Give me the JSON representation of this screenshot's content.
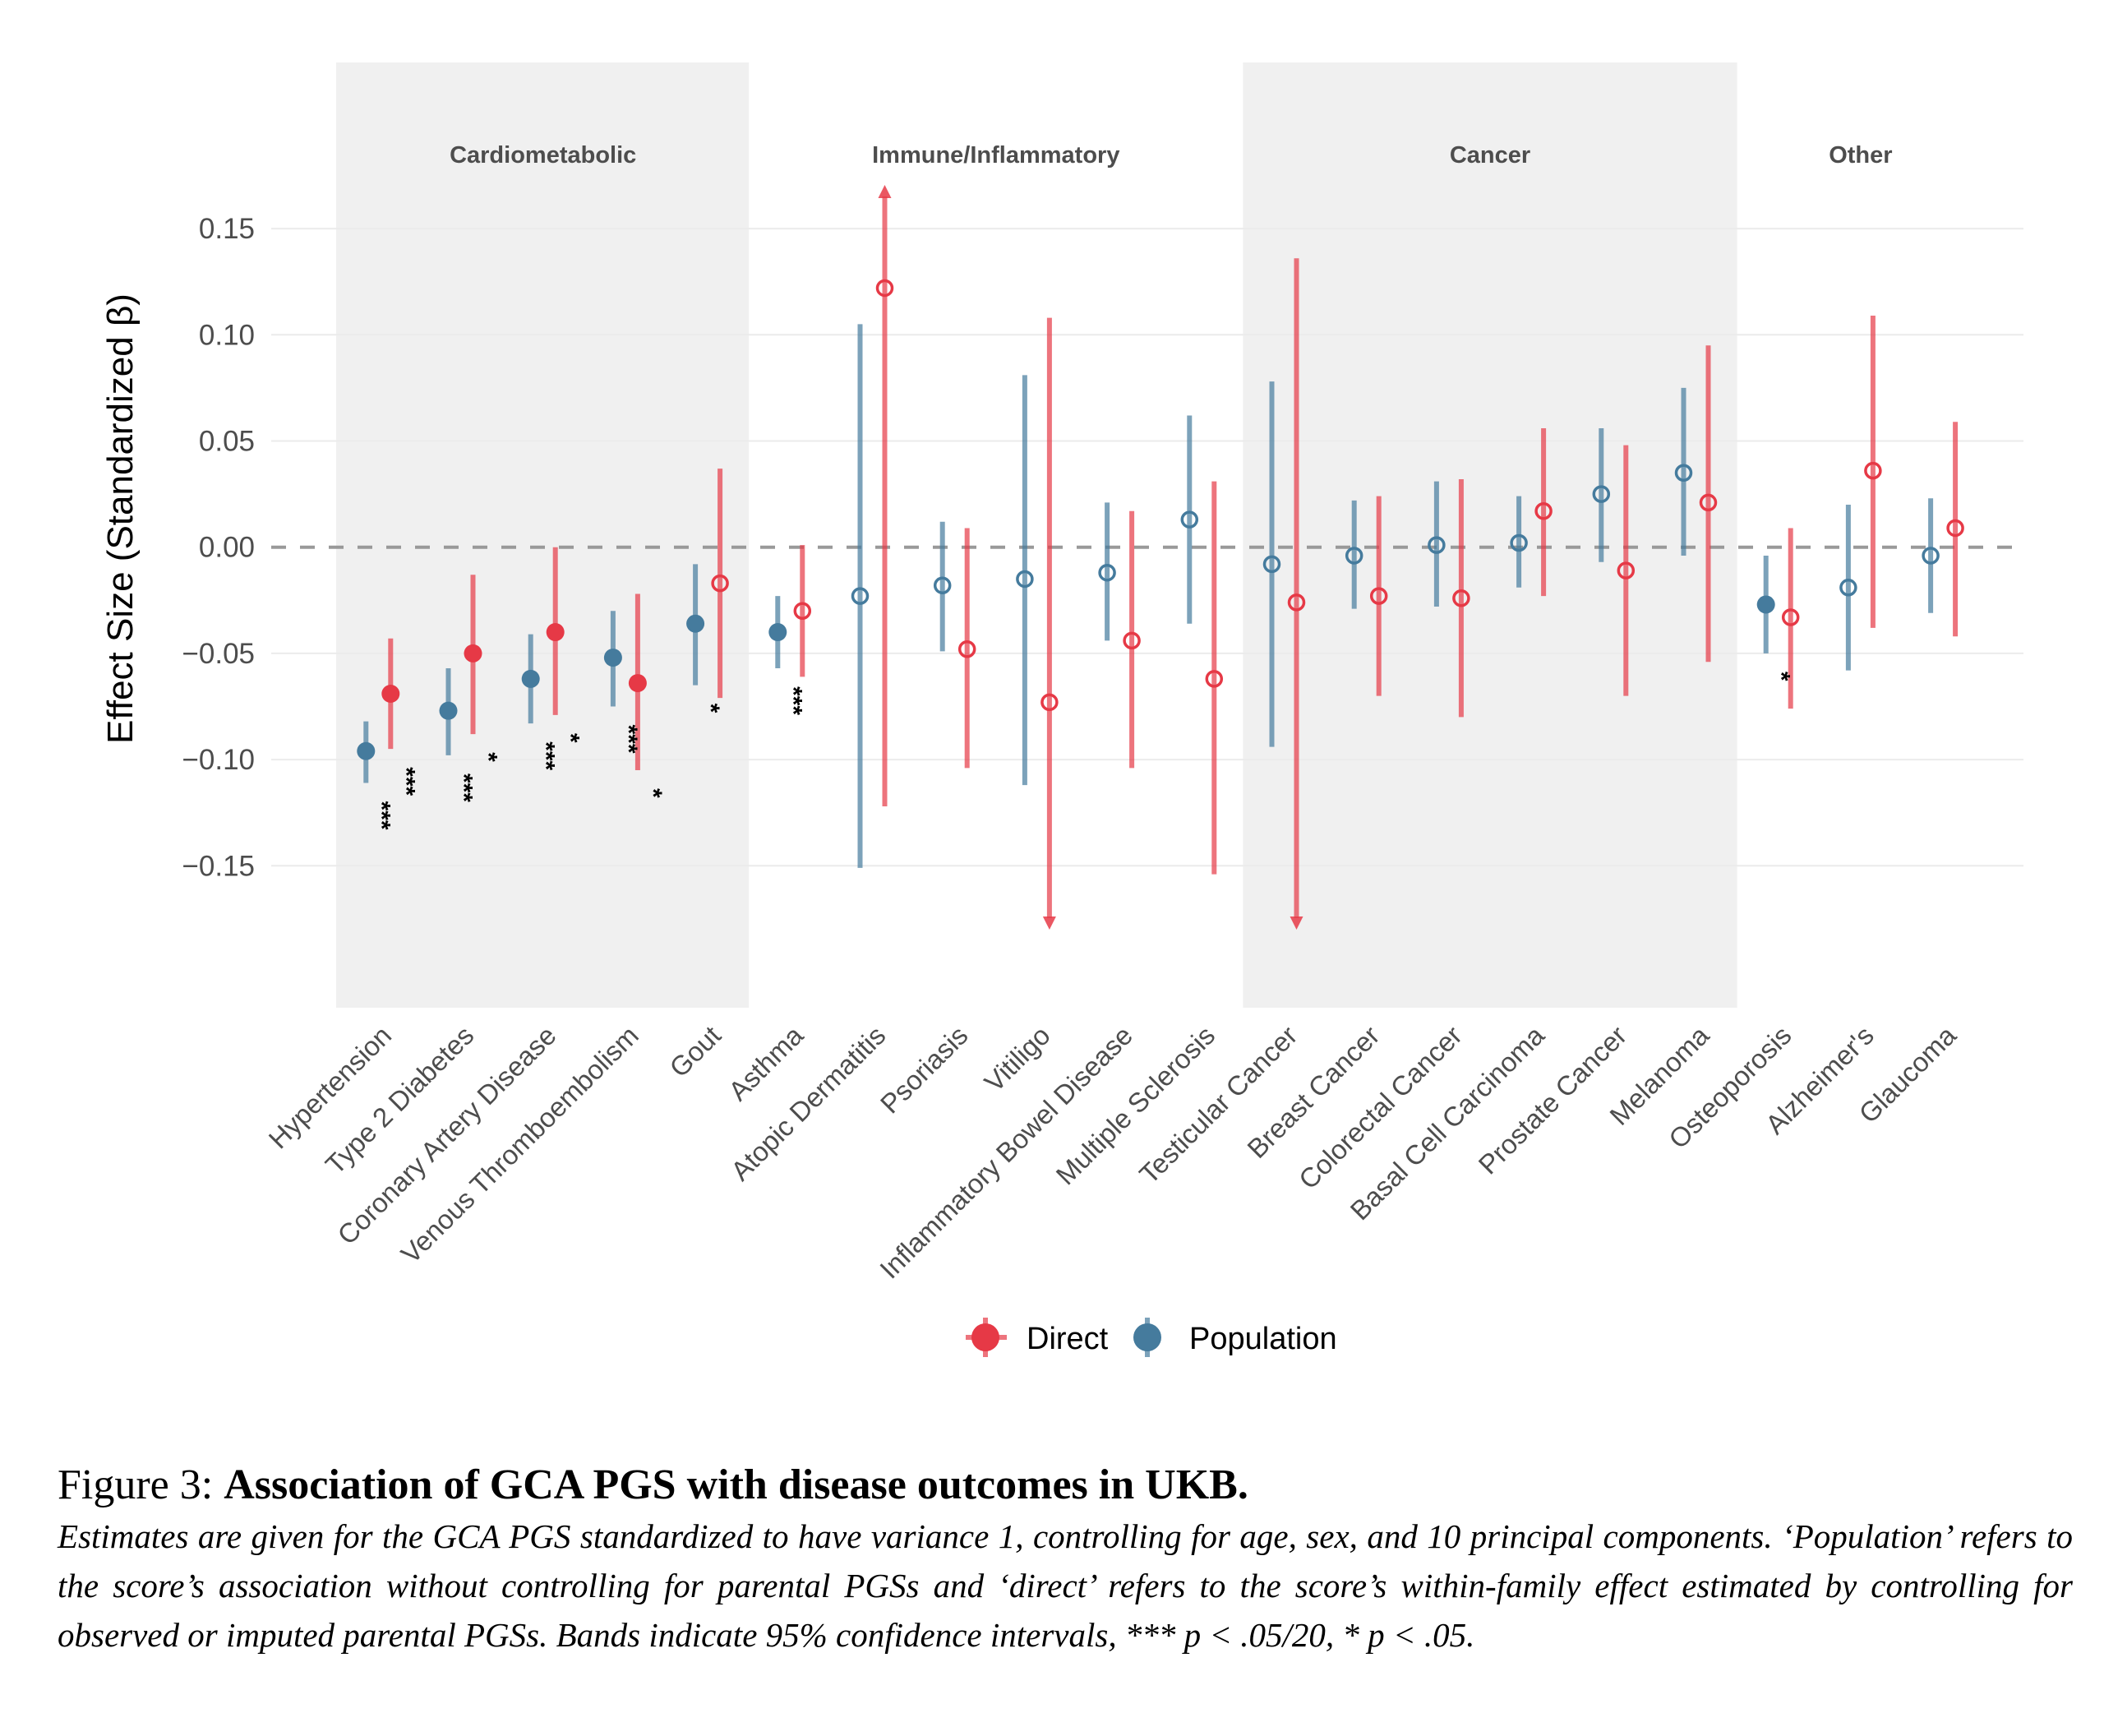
{
  "chart_data": {
    "type": "scatter",
    "subtype": "pointrange",
    "ylabel": "Effect Size (Standardized β)",
    "xlabel": "",
    "ylim": [
      -0.2,
      0.18
    ],
    "yticks": [
      0.15,
      0.1,
      0.05,
      0.0,
      -0.05,
      -0.1,
      -0.15
    ],
    "ytick_labels": [
      "0.15",
      "0.10",
      "0.05",
      "0.00",
      "−0.05",
      "−0.10",
      "−0.15"
    ],
    "reference_line": {
      "y": 0,
      "style": "dashed",
      "color": "#999999"
    },
    "grid": true,
    "legend": {
      "placement": "bottom",
      "entries": [
        {
          "name": "Direct",
          "color": "#E63946"
        },
        {
          "name": "Population",
          "color": "#457B9D"
        }
      ]
    },
    "groups": [
      {
        "label": "Cardiometabolic",
        "shaded": true,
        "categories": [
          "Hypertension",
          "Type 2 Diabetes",
          "Coronary Artery Disease",
          "Venous Thromboembolism",
          "Gout"
        ]
      },
      {
        "label": "Immune/Inflammatory",
        "shaded": false,
        "categories": [
          "Asthma",
          "Atopic Dermatitis",
          "Psoriasis",
          "Vitiligo",
          "Inflammatory Bowel Disease",
          "Multiple Sclerosis"
        ]
      },
      {
        "label": "Cancer",
        "shaded": true,
        "categories": [
          "Testicular Cancer",
          "Breast Cancer",
          "Colorectal Cancer",
          "Basal Cell Carcinoma",
          "Prostate Cancer",
          "Melanoma"
        ]
      },
      {
        "label": "Other",
        "shaded": false,
        "categories": [
          "Osteoporosis",
          "Alzheimer's",
          "Glaucoma"
        ]
      }
    ],
    "categories": [
      "Hypertension",
      "Type 2 Diabetes",
      "Coronary Artery Disease",
      "Venous Thromboembolism",
      "Gout",
      "Asthma",
      "Atopic Dermatitis",
      "Psoriasis",
      "Vitiligo",
      "Inflammatory Bowel Disease",
      "Multiple Sclerosis",
      "Testicular Cancer",
      "Breast Cancer",
      "Colorectal Cancer",
      "Basal Cell Carcinoma",
      "Prostate Cancer",
      "Melanoma",
      "Osteoporosis",
      "Alzheimer's",
      "Glaucoma"
    ],
    "series": [
      {
        "name": "Population",
        "color": "#457B9D",
        "estimate": [
          -0.096,
          -0.077,
          -0.062,
          -0.052,
          -0.036,
          -0.04,
          -0.023,
          -0.018,
          -0.015,
          -0.012,
          0.013,
          -0.008,
          -0.004,
          0.001,
          0.002,
          0.025,
          0.035,
          -0.027,
          -0.019,
          -0.004
        ],
        "ci_low": [
          -0.111,
          -0.098,
          -0.083,
          -0.075,
          -0.065,
          -0.057,
          -0.151,
          -0.049,
          -0.112,
          -0.044,
          -0.036,
          -0.094,
          -0.029,
          -0.028,
          -0.019,
          -0.007,
          -0.004,
          -0.05,
          -0.058,
          -0.031
        ],
        "ci_high": [
          -0.082,
          -0.057,
          -0.041,
          -0.03,
          -0.008,
          -0.023,
          0.105,
          0.012,
          0.081,
          0.021,
          0.062,
          0.078,
          0.022,
          0.031,
          0.024,
          0.056,
          0.075,
          -0.004,
          0.02,
          0.023
        ],
        "significant": [
          true,
          true,
          true,
          true,
          true,
          true,
          false,
          false,
          false,
          false,
          false,
          false,
          false,
          false,
          false,
          false,
          false,
          true,
          false,
          false
        ],
        "sig_label": [
          "***",
          "***",
          "***",
          "***",
          "*",
          "***",
          "",
          "",
          "",
          "",
          "",
          "",
          "",
          "",
          "",
          "",
          "",
          "*",
          "",
          ""
        ]
      },
      {
        "name": "Direct",
        "color": "#E63946",
        "estimate": [
          -0.069,
          -0.05,
          -0.04,
          -0.064,
          -0.017,
          -0.03,
          0.122,
          -0.048,
          -0.073,
          -0.044,
          -0.062,
          -0.026,
          -0.023,
          -0.024,
          0.017,
          -0.011,
          0.021,
          -0.033,
          0.036,
          0.009
        ],
        "ci_low": [
          -0.095,
          -0.088,
          -0.079,
          -0.105,
          -0.071,
          -0.061,
          -0.122,
          -0.104,
          -0.18,
          -0.104,
          -0.154,
          -0.18,
          -0.07,
          -0.08,
          -0.023,
          -0.07,
          -0.054,
          -0.076,
          -0.038,
          -0.042
        ],
        "ci_high": [
          -0.043,
          -0.013,
          0.0,
          -0.022,
          0.037,
          0.001,
          0.17,
          0.009,
          0.108,
          0.017,
          0.031,
          0.136,
          0.024,
          0.032,
          0.056,
          0.048,
          0.095,
          0.009,
          0.109,
          0.059
        ],
        "ci_low_truncated": [
          false,
          false,
          false,
          false,
          false,
          false,
          false,
          false,
          true,
          false,
          false,
          true,
          false,
          false,
          false,
          false,
          false,
          false,
          false,
          false
        ],
        "ci_high_truncated": [
          false,
          false,
          false,
          false,
          false,
          false,
          true,
          false,
          false,
          false,
          false,
          false,
          false,
          false,
          false,
          false,
          false,
          false,
          false,
          false
        ],
        "significant": [
          true,
          true,
          true,
          true,
          false,
          false,
          false,
          false,
          false,
          false,
          false,
          false,
          false,
          false,
          false,
          false,
          false,
          false,
          false,
          false
        ],
        "sig_label": [
          "***",
          "*",
          "*",
          "*",
          "",
          "",
          "",
          "",
          "",
          "",
          "",
          "",
          "",
          "",
          "",
          "",
          "",
          "",
          "",
          ""
        ]
      }
    ],
    "marker_note": "Filled markers = significant; open markers = not significant"
  },
  "caption": {
    "figure_number": "Figure 3:",
    "title": "Association of GCA PGS with disease outcomes in UKB.",
    "body": "Estimates are given for the GCA PGS standardized to have variance 1, controlling for age, sex, and 10 principal components. ‘Population’ refers to the score’s association without controlling for parental PGSs and ‘direct’ refers to the score’s within-family effect estimated by controlling for observed or imputed parental PGSs. Bands indicate 95% confidence intervals, *** p < .05/20, * p < .05."
  }
}
